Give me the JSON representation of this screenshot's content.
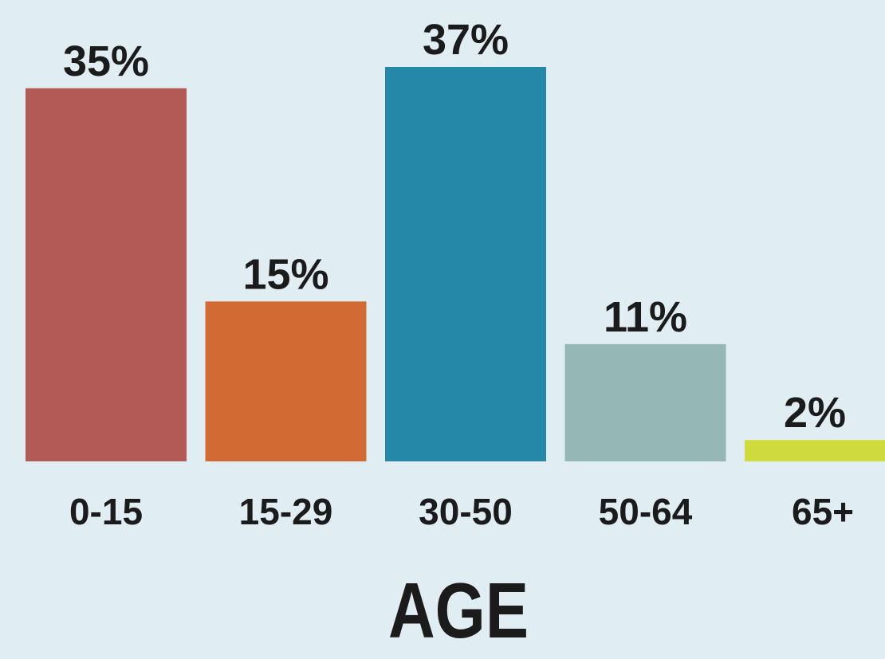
{
  "chart_data": {
    "type": "bar",
    "categories": [
      "0-15",
      "15-29",
      "30-50",
      "50-64",
      "65+"
    ],
    "values": [
      35,
      15,
      37,
      11,
      2
    ],
    "data_labels": [
      "35%",
      "15%",
      "37%",
      "11%",
      "2%"
    ],
    "colors": [
      "#b35a56",
      "#d26a34",
      "#2688a8",
      "#95b7b6",
      "#cfda3c"
    ],
    "title": "",
    "xlabel": "AGE",
    "ylabel": "",
    "ylim": [
      0,
      37
    ],
    "grid": false,
    "legend": "none"
  },
  "style": {
    "background": "#e0eef3",
    "text_color": "#1b1b1b"
  }
}
